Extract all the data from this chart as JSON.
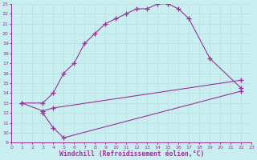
{
  "xlabel": "Windchill (Refroidissement éolien,°C)",
  "curve1_x": [
    1,
    3,
    4,
    5,
    6,
    7,
    8,
    9,
    10,
    11,
    12,
    13,
    14,
    15,
    16,
    17,
    19,
    22
  ],
  "curve1_y": [
    13,
    13,
    14,
    16,
    17,
    19,
    20,
    21,
    21.5,
    22,
    22.5,
    22.5,
    23,
    23,
    22.5,
    21.5,
    17.5,
    14.5
  ],
  "curve2_x": [
    1,
    3,
    4,
    22
  ],
  "curve2_y": [
    13,
    12.2,
    12.5,
    15.3
  ],
  "curve3_x": [
    3,
    4,
    5,
    22
  ],
  "curve3_y": [
    12,
    10.5,
    9.5,
    14.2
  ],
  "color": "#993399",
  "bg_color": "#c8eef0",
  "grid_color": "#b8e0e2",
  "xlim": [
    0,
    23
  ],
  "ylim": [
    9,
    23
  ],
  "xticks": [
    0,
    1,
    2,
    3,
    4,
    5,
    6,
    7,
    8,
    9,
    10,
    11,
    12,
    13,
    14,
    15,
    16,
    17,
    18,
    19,
    20,
    21,
    22,
    23
  ],
  "yticks": [
    9,
    10,
    11,
    12,
    13,
    14,
    15,
    16,
    17,
    18,
    19,
    20,
    21,
    22,
    23
  ],
  "tick_fontsize": 4.5,
  "xlabel_fontsize": 5.8,
  "marker": "+",
  "marker_size": 4,
  "line_width": 0.8
}
